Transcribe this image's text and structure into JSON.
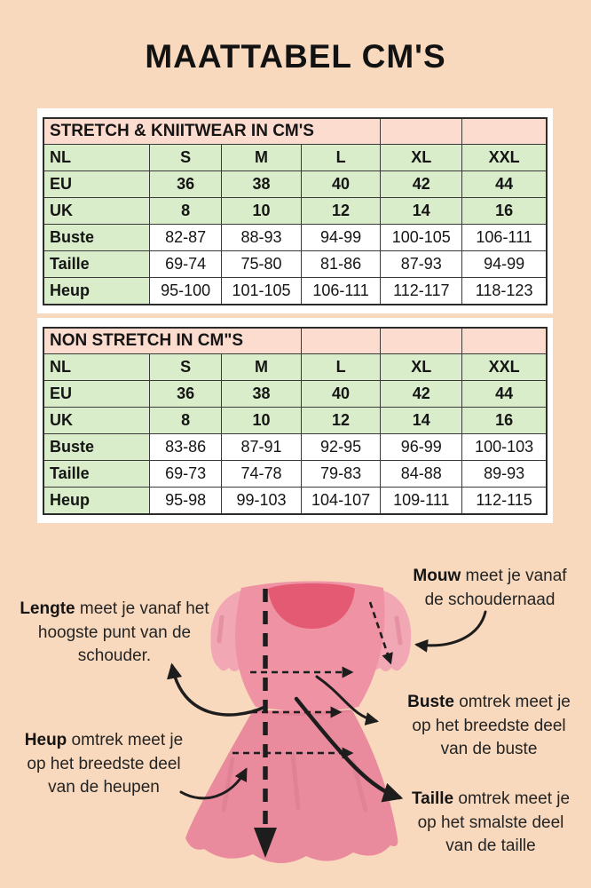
{
  "page": {
    "title": "MAATTABEL CM'S"
  },
  "colors": {
    "page-bg": "#f8d9bd",
    "header-pink": "#fbdccf",
    "cell-green": "#d9edca",
    "table-border": "#3a3a3a",
    "ink": "#1d1d1d",
    "dress-bodice": "#ee92a4",
    "dress-skirt": "#ea8a9d",
    "dress-sleeve": "#f2a7b5",
    "dress-neck": "#e55a73",
    "dress-pleat": "#d87b90"
  },
  "tables": [
    {
      "title": "STRETCH & KNIITWEAR IN CM'S",
      "title_colspan": 4,
      "empty_cells": 2,
      "col_widths_pct": [
        21.1,
        14.3,
        15.8,
        15.8,
        16.2,
        16.8
      ],
      "size_rows": [
        [
          "NL",
          "S",
          "M",
          "L",
          "XL",
          "XXL"
        ],
        [
          "EU",
          "36",
          "38",
          "40",
          "42",
          "44"
        ],
        [
          "UK",
          "8",
          "10",
          "12",
          "14",
          "16"
        ]
      ],
      "measure_rows": [
        [
          "Buste",
          "82-87",
          "88-93",
          "94-99",
          "100-105",
          "106-111"
        ],
        [
          "Taille",
          "69-74",
          "75-80",
          "81-86",
          "87-93",
          "94-99"
        ],
        [
          "Heup",
          "95-100",
          "101-105",
          "106-111",
          "112-117",
          "118-123"
        ]
      ]
    },
    {
      "title": "NON STRETCH IN CM\"S",
      "title_colspan": 3,
      "empty_cells": 3,
      "col_widths_pct": [
        21.1,
        14.3,
        15.8,
        15.8,
        16.2,
        16.8
      ],
      "size_rows": [
        [
          "NL",
          "S",
          "M",
          "L",
          "XL",
          "XXL"
        ],
        [
          "EU",
          "36",
          "38",
          "40",
          "42",
          "44"
        ],
        [
          "UK",
          "8",
          "10",
          "12",
          "14",
          "16"
        ]
      ],
      "measure_rows": [
        [
          "Buste",
          "83-86",
          "87-91",
          "92-95",
          "96-99",
          "100-103"
        ],
        [
          "Taille",
          "69-73",
          "74-78",
          "79-83",
          "84-88",
          "89-93"
        ],
        [
          "Heup",
          "95-98",
          "99-103",
          "104-107",
          "109-111",
          "112-115"
        ]
      ]
    }
  ],
  "annotations": {
    "mouw": {
      "keyword": "Mouw",
      "line1": " meet je vanaf",
      "line2": "de schoudernaad"
    },
    "lengte": {
      "keyword": "Lengte",
      "line1": " meet je vanaf het",
      "line2": "hoogste punt van de",
      "line3": "schouder."
    },
    "buste": {
      "keyword": "Buste",
      "line1": " omtrek meet je",
      "line2": "op het breedste deel",
      "line3": "van de buste"
    },
    "heup": {
      "keyword": "Heup",
      "line1": " omtrek meet je",
      "line2": "op het breedste deel",
      "line3": "van de heupen"
    },
    "taille": {
      "keyword": "Taille",
      "line1": " omtrek meet je",
      "line2": "op het smalste deel",
      "line3": "van de taille"
    }
  }
}
